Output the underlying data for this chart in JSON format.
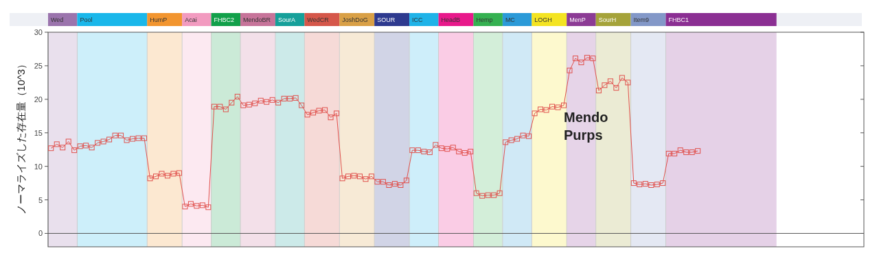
{
  "chart_data": {
    "type": "line",
    "ylabel": "ノーマライズした存在量（10^3）",
    "ylim": [
      -2,
      30
    ],
    "yticks": [
      0,
      5,
      10,
      15,
      20,
      25,
      30
    ],
    "grid": false,
    "marker": "square",
    "line_style": "solid",
    "categories": [
      null,
      null,
      null,
      null,
      null,
      null,
      null,
      null,
      null,
      null,
      null,
      null,
      null,
      null,
      null,
      null,
      null,
      null,
      null,
      null,
      null,
      null,
      null,
      null,
      null,
      null,
      null,
      null,
      null,
      null,
      null,
      null,
      null,
      null,
      null,
      null,
      null,
      null,
      null,
      null,
      null,
      null,
      null,
      null,
      null,
      null,
      null,
      null,
      null,
      null,
      null,
      null,
      null,
      null,
      null,
      null,
      null,
      null,
      null,
      null,
      null,
      null,
      null,
      null,
      null,
      null,
      null,
      null,
      null,
      null,
      null,
      null,
      null,
      null,
      null,
      null,
      null,
      null,
      null,
      null,
      null,
      null,
      null,
      null,
      null,
      null,
      null,
      null,
      null,
      null,
      null,
      null,
      null,
      null,
      null,
      null,
      null,
      null,
      null,
      null,
      null,
      null,
      null,
      null,
      null,
      null,
      null,
      null,
      null,
      null,
      null,
      null,
      null,
      null,
      null,
      null,
      null,
      null,
      null,
      null,
      null,
      null,
      null,
      null,
      null,
      null,
      null,
      null,
      null,
      null,
      null,
      null,
      null,
      null,
      null,
      null,
      null,
      null,
      null,
      null
    ],
    "series": [
      {
        "color": "#e0504c",
        "values": [
          12.7,
          13.3,
          12.8,
          13.7,
          12.4,
          13.0,
          13.1,
          12.8,
          13.5,
          13.7,
          14.0,
          14.6,
          14.6,
          13.9,
          14.1,
          14.2,
          14.2,
          8.2,
          8.5,
          8.9,
          8.6,
          8.9,
          9.0,
          4.0,
          4.4,
          4.1,
          4.2,
          3.9,
          18.9,
          18.9,
          18.5,
          19.5,
          20.4,
          19.1,
          19.2,
          19.4,
          19.8,
          19.6,
          19.9,
          19.5,
          20.1,
          20.1,
          20.2,
          19.1,
          17.7,
          18.0,
          18.3,
          18.4,
          17.3,
          17.9,
          8.2,
          8.5,
          8.6,
          8.5,
          8.1,
          8.5,
          7.7,
          7.7,
          7.2,
          7.4,
          7.2,
          7.9,
          12.4,
          12.4,
          12.2,
          12.1,
          13.2,
          12.7,
          12.6,
          12.8,
          12.2,
          12.0,
          12.2,
          6.0,
          5.6,
          5.7,
          5.7,
          6.0,
          13.6,
          13.9,
          14.1,
          14.6,
          14.5,
          17.9,
          18.5,
          18.4,
          18.9,
          18.8,
          19.1,
          24.3,
          26.1,
          25.5,
          26.2,
          26.1,
          21.3,
          22.1,
          22.7,
          21.7,
          23.2,
          22.5,
          7.5,
          7.3,
          7.4,
          7.2,
          7.3,
          7.5,
          11.9,
          11.9,
          12.4,
          12.1,
          12.1,
          12.3,
          null,
          null,
          null,
          null,
          null,
          null,
          null,
          null,
          null,
          null,
          null,
          null,
          null,
          null,
          null,
          null,
          null,
          null,
          null,
          null,
          null,
          null,
          null,
          null,
          null,
          null,
          null,
          null
        ]
      }
    ],
    "ref_lines": [
      {
        "axis": "y",
        "value": 0,
        "color": "#555555"
      }
    ],
    "annotations": [
      "Wed",
      "Pool",
      "HumP",
      "Acai",
      "FHBC2",
      "MendoBR",
      "SourA",
      "WedCR",
      "JoshDoG",
      "SOUR",
      "ICC",
      "HeadB",
      "Hemp",
      "MC",
      "LOGH",
      "MenP",
      "SourH",
      "Item9",
      "FHBC1",
      "Mendo Purps"
    ]
  }
}
